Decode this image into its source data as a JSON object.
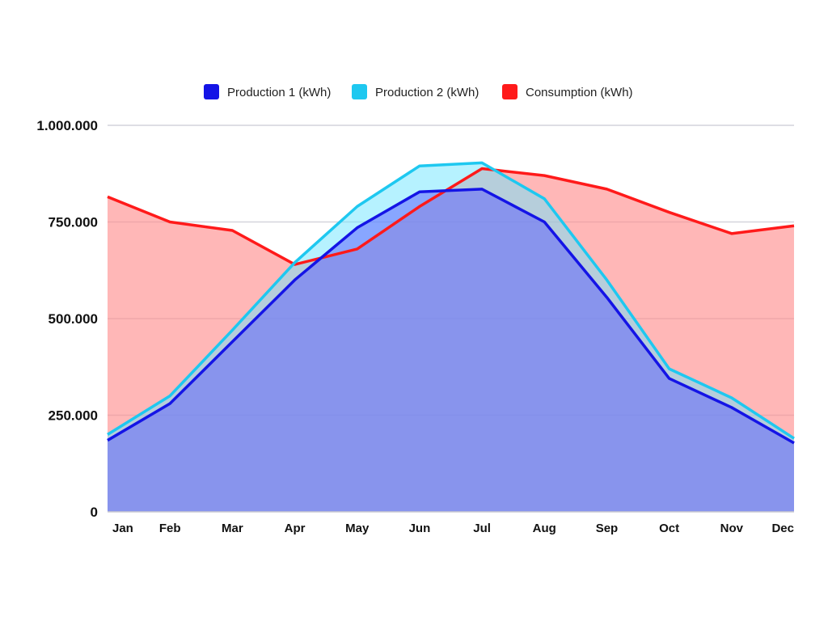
{
  "chart_data": {
    "type": "area",
    "title": "",
    "xlabel": "",
    "ylabel": "",
    "ylim": [
      0,
      1000000
    ],
    "grid": true,
    "legend_position": "top-center",
    "categories": [
      "Jan",
      "Feb",
      "Mar",
      "Apr",
      "May",
      "Jun",
      "Jul",
      "Aug",
      "Sep",
      "Oct",
      "Nov",
      "Dec"
    ],
    "yticks": [
      0,
      250000,
      500000,
      750000,
      1000000
    ],
    "ytick_labels": [
      "0",
      "250.000",
      "500.000",
      "750.000",
      "1.000.000"
    ],
    "series": [
      {
        "name": "Consumption (kWh)",
        "color": "#ff1a1a",
        "fill": "#ff8a8a",
        "values": [
          815000,
          750000,
          728000,
          640000,
          680000,
          790000,
          888000,
          870000,
          835000,
          775000,
          720000,
          740000
        ]
      },
      {
        "name": "Production 2 (kWh)",
        "color": "#1ec8f0",
        "fill": "#6ee6ff",
        "values": [
          200000,
          300000,
          470000,
          645000,
          790000,
          895000,
          903000,
          810000,
          600000,
          370000,
          295000,
          190000
        ]
      },
      {
        "name": "Production 1 (kWh)",
        "color": "#1414e6",
        "fill": "#5a5aff",
        "values": [
          185000,
          280000,
          440000,
          600000,
          735000,
          828000,
          835000,
          750000,
          555000,
          345000,
          270000,
          178000
        ]
      }
    ],
    "legend": [
      {
        "name": "Production 1 (kWh)",
        "color": "#1414e6"
      },
      {
        "name": "Production 2 (kWh)",
        "color": "#1ec8f0"
      },
      {
        "name": "Consumption (kWh)",
        "color": "#ff1a1a"
      }
    ]
  }
}
